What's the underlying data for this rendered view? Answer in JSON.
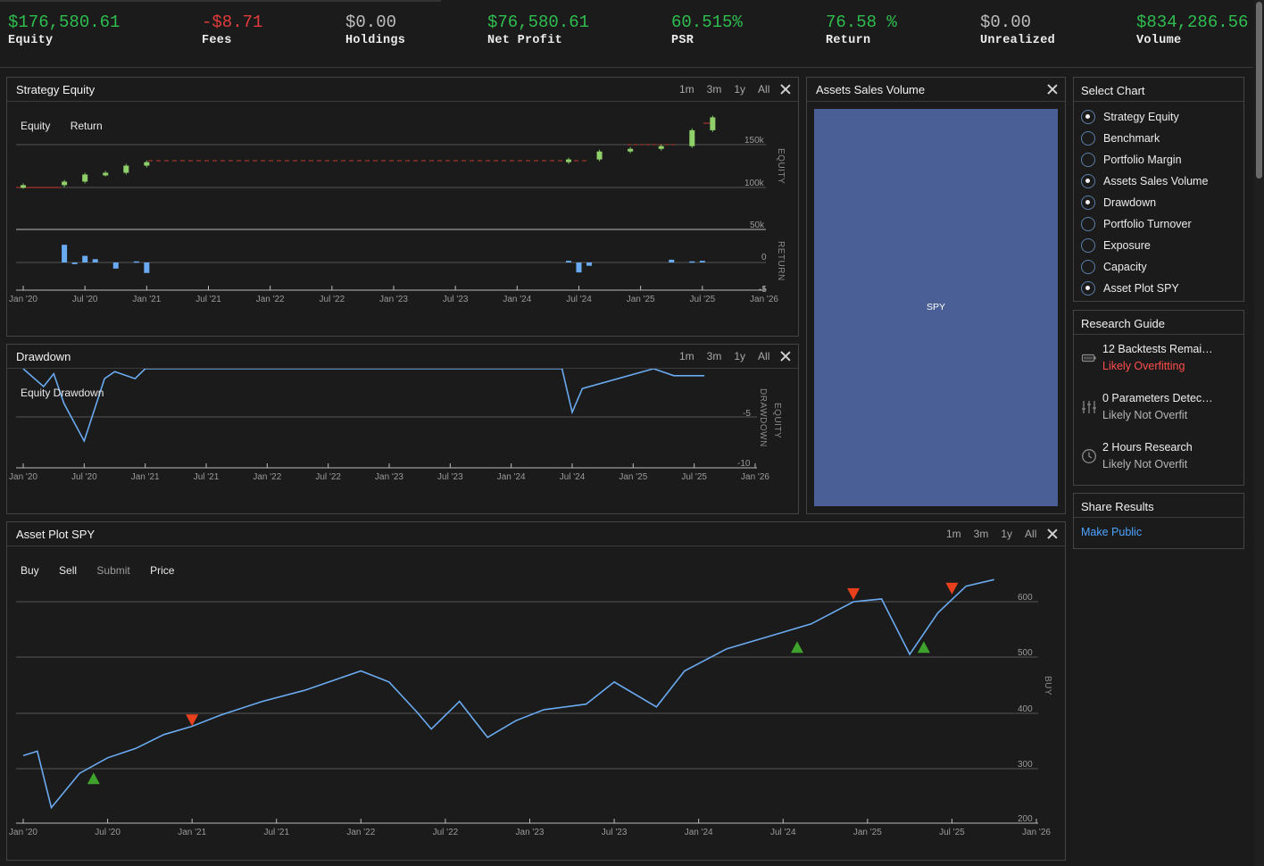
{
  "stats": [
    {
      "value": "$176,580.61",
      "label": "Equity",
      "color": "green"
    },
    {
      "value": "-$8.71",
      "label": "Fees",
      "color": "red"
    },
    {
      "value": "$0.00",
      "label": "Holdings",
      "color": "grey"
    },
    {
      "value": "$76,580.61",
      "label": "Net Profit",
      "color": "green"
    },
    {
      "value": "60.515%",
      "label": "PSR",
      "color": "green"
    },
    {
      "value": "76.58 %",
      "label": "Return",
      "color": "green"
    },
    {
      "value": "$0.00",
      "label": "Unrealized",
      "color": "grey"
    },
    {
      "value": "$834,286.56",
      "label": "Volume",
      "color": "green"
    }
  ],
  "range_buttons": [
    "1m",
    "3m",
    "1y",
    "All"
  ],
  "equity_panel": {
    "title": "Strategy Equity",
    "legend": [
      "Equity",
      "Return"
    ],
    "equity_axis_label": "EQUITY",
    "return_axis_label": "RETURN",
    "equity_ticks": [
      "150k",
      "100k",
      "50k"
    ],
    "return_ticks": [
      "0",
      "-5"
    ],
    "x_ticks": [
      "Jan '20",
      "Jul '20",
      "Jan '21",
      "Jul '21",
      "Jan '22",
      "Jul '22",
      "Jan '23",
      "Jul '23",
      "Jan '24",
      "Jul '24",
      "Jan '25",
      "Jul '25",
      "Jan '26"
    ]
  },
  "drawdown_panel": {
    "title": "Drawdown",
    "legend": [
      "Equity Drawdown"
    ],
    "axis_label_1": "EQUITY",
    "axis_label_2": "DRAWDOWN",
    "y_ticks": [
      "-5",
      "-10"
    ],
    "x_ticks": [
      "Jan '20",
      "Jul '20",
      "Jan '21",
      "Jul '21",
      "Jan '22",
      "Jul '22",
      "Jan '23",
      "Jul '23",
      "Jan '24",
      "Jul '24",
      "Jan '25",
      "Jul '25",
      "Jan '26"
    ]
  },
  "volume_panel": {
    "title": "Assets Sales Volume",
    "asset_label": "SPY",
    "color": "#4a5f96"
  },
  "asset_panel": {
    "title": "Asset Plot SPY",
    "legend": [
      "Buy",
      "Sell",
      "Submit",
      "Price"
    ],
    "axis_label": "BUY",
    "y_ticks": [
      "600",
      "500",
      "400",
      "300",
      "200"
    ],
    "x_ticks": [
      "Jan '20",
      "Jul '20",
      "Jan '21",
      "Jul '21",
      "Jan '22",
      "Jul '22",
      "Jan '23",
      "Jul '23",
      "Jan '24",
      "Jul '24",
      "Jan '25",
      "Jul '25",
      "Jan '26"
    ]
  },
  "select_chart": {
    "title": "Select Chart",
    "options": [
      {
        "label": "Strategy Equity",
        "checked": true
      },
      {
        "label": "Benchmark",
        "checked": false
      },
      {
        "label": "Portfolio Margin",
        "checked": false
      },
      {
        "label": "Assets Sales Volume",
        "checked": true
      },
      {
        "label": "Drawdown",
        "checked": true
      },
      {
        "label": "Portfolio Turnover",
        "checked": false
      },
      {
        "label": "Exposure",
        "checked": false
      },
      {
        "label": "Capacity",
        "checked": false
      },
      {
        "label": "Asset Plot SPY",
        "checked": true
      }
    ]
  },
  "research_guide": {
    "title": "Research Guide",
    "items": [
      {
        "title": "12 Backtests Remai…",
        "status": "Likely Overfitting",
        "icon": "battery-icon",
        "warn": true
      },
      {
        "title": "0 Parameters Detec…",
        "status": "Likely Not Overfit",
        "icon": "sliders-icon",
        "warn": false
      },
      {
        "title": "2 Hours Research",
        "status": "Likely Not Overfit",
        "icon": "clock-icon",
        "warn": false
      }
    ]
  },
  "share": {
    "title": "Share Results",
    "link": "Make Public"
  },
  "chart_data": [
    {
      "type": "line",
      "title": "Strategy Equity",
      "ylabel": "EQUITY",
      "ylim": [
        50000,
        180000
      ],
      "x": [
        "2020-01",
        "2020-05",
        "2020-07",
        "2020-09",
        "2020-11",
        "2021-01",
        "2024-06",
        "2024-09",
        "2024-12",
        "2025-03",
        "2025-06",
        "2025-08"
      ],
      "series": [
        {
          "name": "Equity",
          "values": [
            100000,
            104000,
            112000,
            114000,
            122000,
            126000,
            129000,
            138000,
            141000,
            144000,
            162000,
            176580
          ]
        }
      ]
    },
    {
      "type": "bar",
      "title": "Strategy Equity",
      "ylabel": "RETURN",
      "ylim": [
        -5,
        4
      ],
      "x": [
        "2020-05",
        "2020-06",
        "2020-07",
        "2020-08",
        "2020-10",
        "2020-12",
        "2021-01",
        "2024-06",
        "2024-07",
        "2024-08",
        "2025-04",
        "2025-06",
        "2025-07"
      ],
      "series": [
        {
          "name": "Return",
          "values": [
            3.2,
            -0.3,
            1.2,
            0.6,
            -1.1,
            0.2,
            -1.9,
            0.3,
            -1.8,
            -0.6,
            0.5,
            0.2,
            0.3
          ]
        }
      ]
    },
    {
      "type": "line",
      "title": "Drawdown",
      "ylabel": "EQUITY DRAWDOWN",
      "ylim": [
        -10,
        0
      ],
      "x": [
        "2020-01",
        "2020-03",
        "2020-04",
        "2020-05",
        "2020-07",
        "2020-09",
        "2020-10",
        "2020-12",
        "2021-01",
        "2024-06",
        "2024-07",
        "2024-08",
        "2025-03",
        "2025-05",
        "2025-08"
      ],
      "series": [
        {
          "name": "Equity Drawdown",
          "values": [
            0,
            -1.8,
            -0.5,
            -3.5,
            -7.3,
            -1.0,
            -0.3,
            -1.0,
            0,
            0,
            -4.4,
            -2.0,
            0,
            -0.7,
            -0.7
          ]
        }
      ]
    },
    {
      "type": "bar",
      "title": "Assets Sales Volume",
      "categories": [
        "SPY"
      ],
      "values": [
        834286.56
      ]
    },
    {
      "type": "line",
      "title": "Asset Plot SPY",
      "ylabel": "BUY",
      "ylim": [
        200,
        650
      ],
      "x": [
        "2020-01",
        "2020-02",
        "2020-03",
        "2020-05",
        "2020-07",
        "2020-09",
        "2020-11",
        "2021-01",
        "2021-03",
        "2021-06",
        "2021-09",
        "2022-01",
        "2022-03",
        "2022-05",
        "2022-06",
        "2022-08",
        "2022-10",
        "2022-12",
        "2023-02",
        "2023-05",
        "2023-07",
        "2023-10",
        "2023-12",
        "2024-03",
        "2024-07",
        "2024-09",
        "2024-12",
        "2025-02",
        "2025-04",
        "2025-06",
        "2025-08",
        "2025-10"
      ],
      "series": [
        {
          "name": "Price",
          "values": [
            322,
            330,
            228,
            290,
            318,
            335,
            360,
            375,
            395,
            420,
            440,
            475,
            455,
            400,
            370,
            420,
            355,
            385,
            405,
            415,
            455,
            410,
            475,
            515,
            545,
            560,
            600,
            605,
            505,
            580,
            628,
            640
          ]
        },
        {
          "name": "Buy",
          "x": [
            "2020-06",
            "2024-08",
            "2025-05"
          ],
          "values": [
            290,
            527,
            527
          ]
        },
        {
          "name": "Sell",
          "x": [
            "2021-01",
            "2024-12",
            "2025-07"
          ],
          "values": [
            377,
            605,
            615
          ]
        }
      ]
    }
  ]
}
